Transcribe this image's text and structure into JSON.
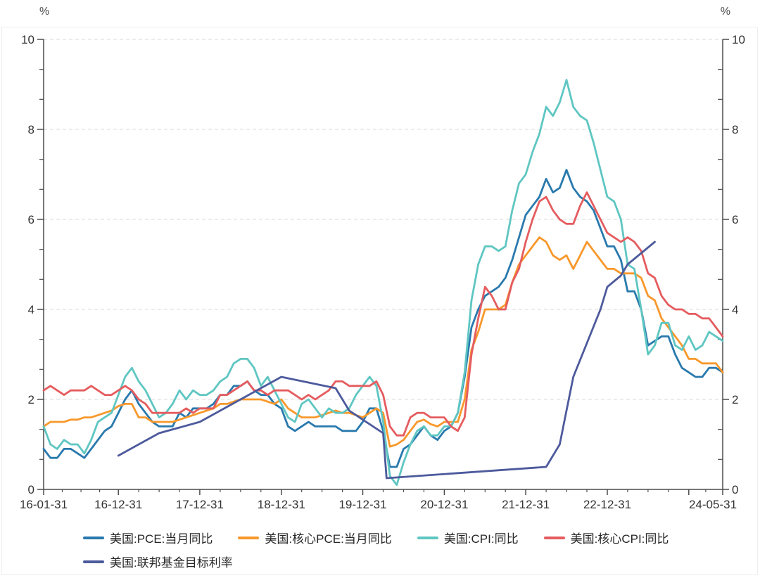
{
  "chart_data": {
    "type": "line",
    "title": "",
    "unit_left": "%",
    "unit_right": "%",
    "grid": "dashed-horizontal",
    "legend_position": "bottom",
    "ylim": [
      0,
      10
    ],
    "y_ticks": [
      0,
      2,
      4,
      6,
      8,
      10
    ],
    "x_months_total": 100,
    "x_ticks": [
      {
        "m": 0,
        "label": "16-01-31"
      },
      {
        "m": 11,
        "label": "16-12-31"
      },
      {
        "m": 23,
        "label": "17-12-31"
      },
      {
        "m": 35,
        "label": "18-12-31"
      },
      {
        "m": 47,
        "label": "19-12-31"
      },
      {
        "m": 59,
        "label": "20-12-31"
      },
      {
        "m": 71,
        "label": "21-12-31"
      },
      {
        "m": 83,
        "label": "22-12-31"
      },
      {
        "m": 95,
        "label": ""
      },
      {
        "m": 100,
        "label": "24-05-31"
      }
    ],
    "colors": {
      "grid": "#d9d9d9",
      "axis": "#4c4c4c",
      "tick_label": "#333333"
    },
    "series": [
      {
        "name": "美国:PCE:当月同比",
        "color": "#2979ad",
        "start": "2016-01",
        "values": [
          0.9,
          0.7,
          0.7,
          0.9,
          0.9,
          0.8,
          0.7,
          0.9,
          1.1,
          1.3,
          1.4,
          1.7,
          2.0,
          2.2,
          1.9,
          1.7,
          1.5,
          1.4,
          1.4,
          1.4,
          1.7,
          1.6,
          1.8,
          1.8,
          1.8,
          1.9,
          2.1,
          2.1,
          2.3,
          2.3,
          2.4,
          2.2,
          2.1,
          2.1,
          1.9,
          1.8,
          1.4,
          1.3,
          1.4,
          1.5,
          1.4,
          1.4,
          1.4,
          1.4,
          1.3,
          1.3,
          1.3,
          1.5,
          1.8,
          1.8,
          1.3,
          0.5,
          0.5,
          0.9,
          1.0,
          1.2,
          1.4,
          1.2,
          1.1,
          1.3,
          1.4,
          1.7,
          2.5,
          3.6,
          4.0,
          4.3,
          4.4,
          4.5,
          4.7,
          5.1,
          5.6,
          6.1,
          6.3,
          6.5,
          6.9,
          6.6,
          6.7,
          7.1,
          6.7,
          6.5,
          6.4,
          6.2,
          5.8,
          5.4,
          5.4,
          5.1,
          4.4,
          4.4,
          4.0,
          3.2,
          3.3,
          3.4,
          3.4,
          3.0,
          2.7,
          2.6,
          2.5,
          2.5,
          2.7,
          2.7,
          2.6
        ]
      },
      {
        "name": "美国:核心PCE:当月同比",
        "color": "#f8982b",
        "start": "2016-01",
        "values": [
          1.4,
          1.5,
          1.5,
          1.5,
          1.55,
          1.55,
          1.6,
          1.6,
          1.65,
          1.7,
          1.75,
          1.85,
          1.9,
          1.9,
          1.6,
          1.6,
          1.5,
          1.5,
          1.5,
          1.5,
          1.55,
          1.6,
          1.65,
          1.7,
          1.75,
          1.8,
          1.9,
          1.9,
          1.95,
          2.0,
          2.0,
          2.0,
          2.0,
          1.95,
          1.9,
          2.0,
          1.8,
          1.7,
          1.6,
          1.6,
          1.6,
          1.65,
          1.7,
          1.75,
          1.7,
          1.7,
          1.65,
          1.6,
          1.7,
          1.8,
          1.7,
          0.95,
          1.0,
          1.1,
          1.3,
          1.5,
          1.55,
          1.45,
          1.4,
          1.5,
          1.5,
          1.5,
          2.0,
          3.1,
          3.5,
          4.0,
          4.0,
          4.0,
          4.1,
          4.6,
          5.0,
          5.2,
          5.4,
          5.6,
          5.5,
          5.2,
          5.1,
          5.2,
          4.9,
          5.2,
          5.5,
          5.3,
          5.1,
          4.9,
          4.9,
          4.8,
          4.8,
          4.8,
          4.7,
          4.3,
          4.2,
          3.8,
          3.6,
          3.4,
          3.2,
          2.9,
          2.9,
          2.8,
          2.8,
          2.8,
          2.6
        ]
      },
      {
        "name": "美国:CPI:同比",
        "color": "#5fc6c2",
        "start": "2016-01",
        "values": [
          1.4,
          1.0,
          0.9,
          1.1,
          1.0,
          1.0,
          0.8,
          1.1,
          1.5,
          1.6,
          1.7,
          2.1,
          2.5,
          2.7,
          2.4,
          2.2,
          1.9,
          1.6,
          1.7,
          1.9,
          2.2,
          2.0,
          2.2,
          2.1,
          2.1,
          2.2,
          2.4,
          2.5,
          2.8,
          2.9,
          2.9,
          2.7,
          2.3,
          2.5,
          2.2,
          1.9,
          1.6,
          1.5,
          1.9,
          2.0,
          1.8,
          1.6,
          1.8,
          1.7,
          1.7,
          1.8,
          2.1,
          2.3,
          2.5,
          2.3,
          1.5,
          0.3,
          0.1,
          0.6,
          1.0,
          1.3,
          1.4,
          1.2,
          1.2,
          1.4,
          1.4,
          1.7,
          2.6,
          4.2,
          5.0,
          5.4,
          5.4,
          5.3,
          5.4,
          6.2,
          6.8,
          7.0,
          7.5,
          7.9,
          8.5,
          8.3,
          8.6,
          9.1,
          8.5,
          8.3,
          8.2,
          7.7,
          7.1,
          6.5,
          6.4,
          6.0,
          5.0,
          4.9,
          4.0,
          3.0,
          3.2,
          3.7,
          3.7,
          3.2,
          3.1,
          3.4,
          3.1,
          3.2,
          3.5,
          3.4,
          3.3
        ]
      },
      {
        "name": "美国:核心CPI:同比",
        "color": "#e55c5f",
        "start": "2016-01",
        "values": [
          2.2,
          2.3,
          2.2,
          2.1,
          2.2,
          2.2,
          2.2,
          2.3,
          2.2,
          2.1,
          2.1,
          2.2,
          2.3,
          2.2,
          2.0,
          1.9,
          1.7,
          1.7,
          1.7,
          1.7,
          1.7,
          1.8,
          1.7,
          1.8,
          1.8,
          1.8,
          2.1,
          2.1,
          2.2,
          2.3,
          2.4,
          2.2,
          2.2,
          2.1,
          2.2,
          2.2,
          2.2,
          2.1,
          2.0,
          2.1,
          2.0,
          2.1,
          2.2,
          2.4,
          2.4,
          2.3,
          2.3,
          2.3,
          2.3,
          2.4,
          2.1,
          1.4,
          1.2,
          1.2,
          1.6,
          1.7,
          1.7,
          1.6,
          1.6,
          1.6,
          1.4,
          1.3,
          1.6,
          3.0,
          3.8,
          4.5,
          4.3,
          4.0,
          4.0,
          4.6,
          4.9,
          5.5,
          6.0,
          6.4,
          6.5,
          6.2,
          6.0,
          5.9,
          5.9,
          6.3,
          6.6,
          6.3,
          6.0,
          5.7,
          5.6,
          5.5,
          5.6,
          5.5,
          5.3,
          4.8,
          4.7,
          4.3,
          4.1,
          4.0,
          4.0,
          3.9,
          3.9,
          3.8,
          3.8,
          3.6,
          3.4
        ]
      },
      {
        "name": "美国:联邦基金目标利率",
        "color": "#4d5a9c",
        "points": [
          [
            11,
            0.75
          ],
          [
            14,
            1.0
          ],
          [
            17,
            1.25
          ],
          [
            23,
            1.5
          ],
          [
            26,
            1.75
          ],
          [
            29,
            2.0
          ],
          [
            32,
            2.25
          ],
          [
            35,
            2.5
          ],
          [
            43,
            2.25
          ],
          [
            44,
            2.0
          ],
          [
            45,
            1.75
          ],
          [
            50,
            1.25
          ],
          [
            50.5,
            0.25
          ],
          [
            74,
            0.5
          ],
          [
            76,
            1.0
          ],
          [
            77,
            1.75
          ],
          [
            78,
            2.5
          ],
          [
            80,
            3.25
          ],
          [
            82,
            4.0
          ],
          [
            83,
            4.5
          ],
          [
            85,
            4.75
          ],
          [
            86,
            5.0
          ],
          [
            88,
            5.25
          ],
          [
            90,
            5.5
          ]
        ]
      }
    ]
  }
}
